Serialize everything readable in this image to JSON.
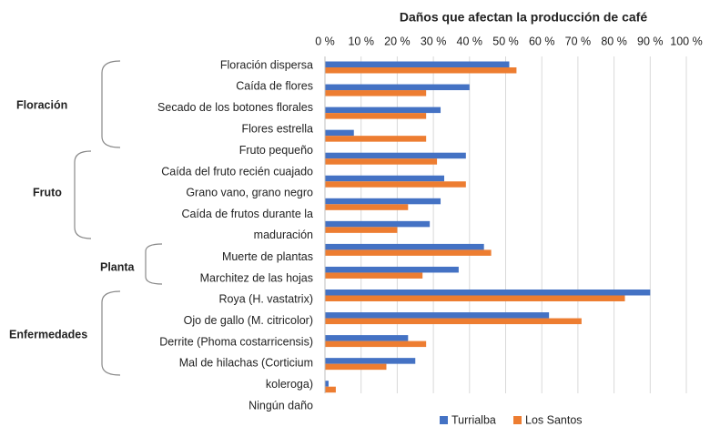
{
  "chart_data": {
    "type": "barh",
    "title": "Daños que afectan la producción de café",
    "categories": [
      "Floración dispersa",
      "Caída de flores",
      "Secado de los botones florales",
      "Flores estrella",
      "Fruto pequeño",
      "Caída del fruto recién cuajado",
      "Grano vano, grano negro",
      "Caída de frutos durante la maduración",
      "Muerte de plantas",
      "Marchitez de las hojas",
      "Roya (H. vastatrix)",
      "Ojo de gallo (M. citricolor)",
      "Derrite (Phoma costarricensis)",
      "Mal de hilachas (Corticium koleroga)",
      "Ningún daño"
    ],
    "groups": [
      "Floración",
      "Fruto",
      "Planta",
      "Enfermedades"
    ],
    "series": [
      {
        "name": "Turrialba",
        "color": "#4472c4",
        "values": [
          51,
          40,
          32,
          8,
          39,
          33,
          32,
          29,
          44,
          37,
          90,
          62,
          23,
          25,
          1
        ]
      },
      {
        "name": "Los Santos",
        "color": "#ed7d31",
        "values": [
          53,
          28,
          28,
          28,
          31,
          39,
          23,
          20,
          46,
          27,
          83,
          71,
          28,
          17,
          3
        ]
      }
    ],
    "xlim": [
      0,
      100
    ],
    "xticks": [
      {
        "value": 0,
        "label": "0 %"
      },
      {
        "value": 10,
        "label": "10 %"
      },
      {
        "value": 20,
        "label": "20 %"
      },
      {
        "value": 30,
        "label": "30 %"
      },
      {
        "value": 40,
        "label": "40 %"
      },
      {
        "value": 50,
        "label": "50 %"
      },
      {
        "value": 60,
        "label": "60 %"
      },
      {
        "value": 70,
        "label": "70 %"
      },
      {
        "value": 80,
        "label": "80 %"
      },
      {
        "value": 90,
        "label": "90 %"
      },
      {
        "value": 100,
        "label": "100 %"
      }
    ],
    "grid": true,
    "legend": "bottom"
  }
}
